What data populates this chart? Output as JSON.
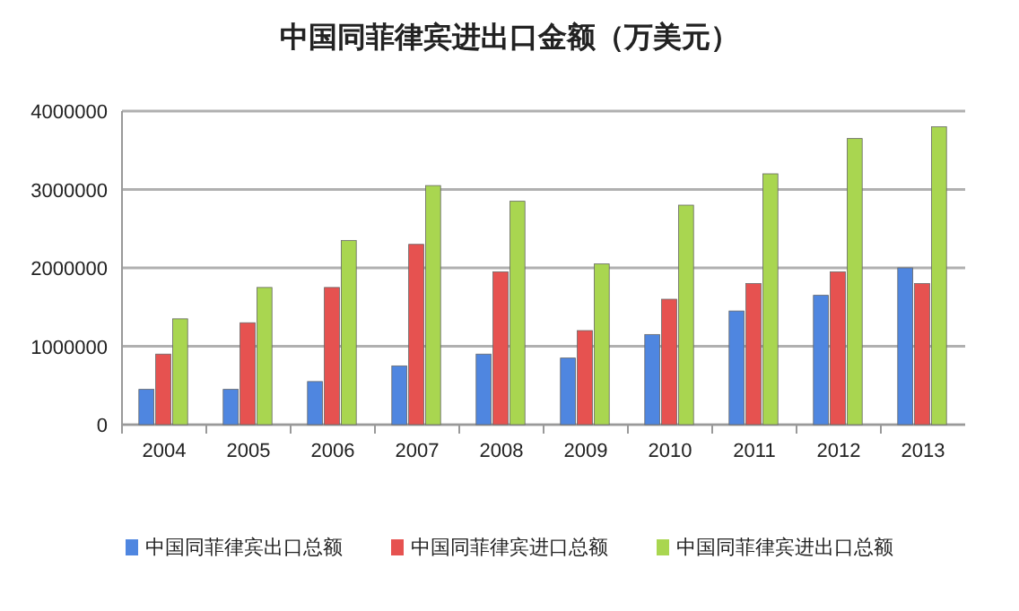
{
  "chart_data": {
    "type": "bar",
    "title": "中国同菲律宾进出口金额（万美元）",
    "categories": [
      "2004",
      "2005",
      "2006",
      "2007",
      "2008",
      "2009",
      "2010",
      "2011",
      "2012",
      "2013"
    ],
    "series": [
      {
        "name": "中国同菲律宾出口总额",
        "color": "#4f86e0",
        "values": [
          450000,
          450000,
          550000,
          750000,
          900000,
          850000,
          1150000,
          1450000,
          1650000,
          2000000
        ]
      },
      {
        "name": "中国同菲律宾进口总额",
        "color": "#e65250",
        "values": [
          900000,
          1300000,
          1750000,
          2300000,
          1950000,
          1200000,
          1600000,
          1800000,
          1950000,
          1800000
        ]
      },
      {
        "name": "中国同菲律宾进出口总额",
        "color": "#a9d650",
        "values": [
          1350000,
          1750000,
          2350000,
          3050000,
          2850000,
          2050000,
          2800000,
          3200000,
          3650000,
          3800000
        ]
      }
    ],
    "ylim": [
      0,
      4000000
    ],
    "yticks": [
      0,
      1000000,
      2000000,
      3000000,
      4000000
    ],
    "grid": "y",
    "legend": "bottom"
  }
}
